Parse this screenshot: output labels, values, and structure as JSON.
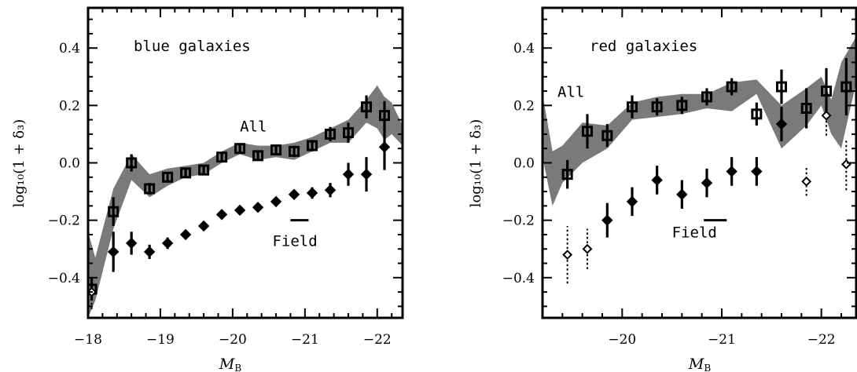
{
  "chart_data": [
    {
      "type": "scatter",
      "title": "blue galaxies",
      "xlabel": "M",
      "xlabel_sub": "B",
      "ylabel": "log₁₀(1 + δ₃)",
      "xlim": [
        -18.0,
        -22.35
      ],
      "ylim": [
        -0.54,
        0.54
      ],
      "xticks": [
        -18,
        -19,
        -20,
        -21,
        -22
      ],
      "xtick_labels": [
        "−18",
        "−19",
        "−20",
        "−21",
        "−22"
      ],
      "yticks": [
        -0.4,
        -0.2,
        0.0,
        0.2,
        0.4
      ],
      "ytick_labels": [
        "−0.4",
        "−0.2",
        "0.0",
        "0.2",
        "0.4"
      ],
      "annotations": [
        {
          "text": "All",
          "x": -20.1,
          "y": 0.11
        },
        {
          "text": "Field",
          "x": -20.55,
          "y": -0.29
        }
      ],
      "errorbar_marker": {
        "x": [
          -20.8,
          -21.05
        ],
        "y": -0.2
      },
      "band": {
        "x": [
          -18.0,
          -18.1,
          -18.35,
          -18.6,
          -18.85,
          -19.1,
          -19.35,
          -19.6,
          -19.85,
          -20.1,
          -20.35,
          -20.6,
          -20.85,
          -21.1,
          -21.35,
          -21.6,
          -21.85,
          -22.0,
          -22.1,
          -22.2,
          -22.35
        ],
        "upper": [
          -0.24,
          -0.33,
          -0.09,
          0.03,
          -0.04,
          -0.02,
          -0.01,
          0.0,
          0.04,
          0.07,
          0.06,
          0.06,
          0.07,
          0.09,
          0.12,
          0.15,
          0.22,
          0.27,
          0.23,
          0.21,
          0.13
        ],
        "lower": [
          -0.54,
          -0.48,
          -0.23,
          -0.06,
          -0.12,
          -0.08,
          -0.05,
          -0.04,
          0.0,
          0.03,
          0.01,
          0.02,
          0.01,
          0.04,
          0.07,
          0.07,
          0.14,
          0.12,
          0.08,
          0.1,
          0.06
        ]
      },
      "series": [
        {
          "name": "All",
          "marker": "square",
          "x": [
            -18.05,
            -18.35,
            -18.6,
            -18.85,
            -19.1,
            -19.35,
            -19.6,
            -19.85,
            -20.1,
            -20.35,
            -20.6,
            -20.85,
            -21.1,
            -21.35,
            -21.6,
            -21.85,
            -22.1
          ],
          "y": [
            -0.44,
            -0.17,
            0.0,
            -0.09,
            -0.05,
            -0.035,
            -0.025,
            0.02,
            0.05,
            0.025,
            0.045,
            0.04,
            0.06,
            0.1,
            0.105,
            0.195,
            0.165
          ],
          "yerr": [
            0.04,
            0.05,
            0.03,
            0.02,
            0.015,
            0.012,
            0.012,
            0.012,
            0.012,
            0.012,
            0.012,
            0.02,
            0.02,
            0.025,
            0.035,
            0.04,
            0.05
          ]
        },
        {
          "name": "Field",
          "marker": "diamond",
          "x": [
            -18.05,
            -18.35,
            -18.6,
            -18.85,
            -19.1,
            -19.35,
            -19.6,
            -19.85,
            -20.1,
            -20.35,
            -20.6,
            -20.85,
            -21.1,
            -21.35,
            -21.6,
            -21.85,
            -22.1
          ],
          "y": [
            -0.45,
            -0.31,
            -0.28,
            -0.31,
            -0.28,
            -0.25,
            -0.22,
            -0.18,
            -0.165,
            -0.155,
            -0.135,
            -0.11,
            -0.105,
            -0.095,
            -0.04,
            -0.04,
            0.055
          ],
          "yerr": [
            0.06,
            0.07,
            0.04,
            0.025,
            0.02,
            0.012,
            0.012,
            0.012,
            0.012,
            0.012,
            0.012,
            0.015,
            0.02,
            0.025,
            0.04,
            0.06,
            0.08
          ],
          "dotted": [
            true,
            false,
            false,
            false,
            false,
            false,
            false,
            false,
            false,
            false,
            false,
            false,
            false,
            false,
            false,
            false,
            false
          ]
        }
      ]
    },
    {
      "type": "scatter",
      "title": "red galaxies",
      "xlabel": "M",
      "xlabel_sub": "B",
      "ylabel": "log₁₀(1 + δ₃)",
      "xlim": [
        -19.2,
        -22.35
      ],
      "ylim": [
        -0.54,
        0.54
      ],
      "xticks": [
        -20,
        -21,
        -22
      ],
      "xtick_labels": [
        "−20",
        "−21",
        "−22"
      ],
      "yticks": [
        -0.4,
        -0.2,
        0.0,
        0.2,
        0.4
      ],
      "ytick_labels": [
        "−0.4",
        "−0.2",
        "0.0",
        "0.2",
        "0.4"
      ],
      "annotations": [
        {
          "text": "All",
          "x": -19.35,
          "y": 0.23
        },
        {
          "text": "Field",
          "x": -20.5,
          "y": -0.26
        }
      ],
      "errorbar_marker": {
        "x": [
          -20.82,
          -21.05
        ],
        "y": -0.2
      },
      "band": {
        "x": [
          -19.2,
          -19.3,
          -19.4,
          -19.6,
          -19.85,
          -20.1,
          -20.35,
          -20.6,
          -20.85,
          -21.1,
          -21.35,
          -21.6,
          -21.85,
          -22.0,
          -22.1,
          -22.2,
          -22.35
        ],
        "upper": [
          0.24,
          0.04,
          0.06,
          0.14,
          0.13,
          0.21,
          0.23,
          0.24,
          0.24,
          0.28,
          0.29,
          0.2,
          0.26,
          0.3,
          0.22,
          0.35,
          0.44
        ],
        "lower": [
          0.02,
          -0.15,
          -0.07,
          0.0,
          0.05,
          0.15,
          0.16,
          0.17,
          0.19,
          0.18,
          0.24,
          0.05,
          0.13,
          0.2,
          0.1,
          0.05,
          0.28
        ]
      },
      "series": [
        {
          "name": "All",
          "marker": "square",
          "x": [
            -19.45,
            -19.65,
            -19.85,
            -20.1,
            -20.35,
            -20.6,
            -20.85,
            -21.1,
            -21.35,
            -21.6,
            -21.85,
            -22.05,
            -22.25
          ],
          "y": [
            -0.04,
            0.11,
            0.095,
            0.195,
            0.195,
            0.2,
            0.23,
            0.265,
            0.17,
            0.265,
            0.19,
            0.25,
            0.265
          ],
          "yerr": [
            0.05,
            0.06,
            0.04,
            0.04,
            0.03,
            0.03,
            0.03,
            0.03,
            0.04,
            0.06,
            0.07,
            0.08,
            0.1
          ]
        },
        {
          "name": "Field",
          "marker": "diamond",
          "x": [
            -19.45,
            -19.65,
            -19.85,
            -20.1,
            -20.35,
            -20.6,
            -20.85,
            -21.1,
            -21.35,
            -21.6,
            -21.85,
            -22.05,
            -22.25
          ],
          "y": [
            -0.32,
            -0.3,
            -0.2,
            -0.135,
            -0.06,
            -0.11,
            -0.07,
            -0.03,
            -0.03,
            0.135,
            -0.065,
            0.165,
            -0.005
          ],
          "yerr": [
            0.1,
            0.07,
            0.06,
            0.05,
            0.05,
            0.05,
            0.05,
            0.05,
            0.05,
            0.06,
            0.05,
            0.07,
            0.09
          ],
          "dotted": [
            true,
            true,
            false,
            false,
            false,
            false,
            false,
            false,
            false,
            false,
            true,
            true,
            true
          ]
        }
      ]
    }
  ]
}
